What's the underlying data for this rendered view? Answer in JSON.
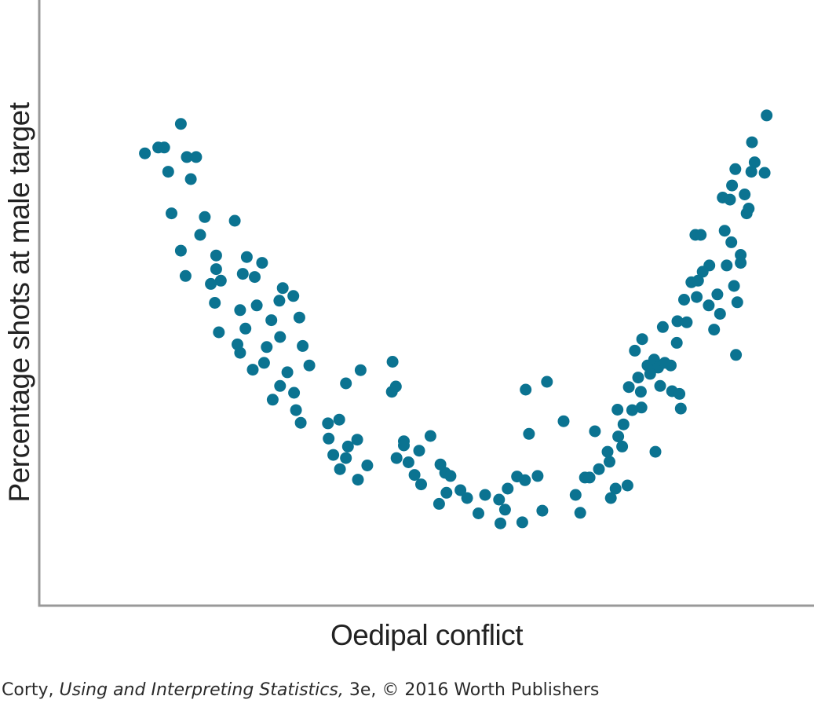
{
  "colors": {
    "point": "#0b7391",
    "axis": "#999999",
    "text": "#222222"
  },
  "chart_data": {
    "type": "scatter",
    "title": "",
    "xlabel": "Oedipal conflict",
    "ylabel": "Percentage shots at male target",
    "xlim": [
      0,
      100
    ],
    "ylim": [
      0,
      100
    ],
    "grid": false,
    "legend": "none",
    "series": [
      {
        "points": [
          [
            8.8,
            84.3
          ],
          [
            10.8,
            85.4
          ],
          [
            11.7,
            85.4
          ],
          [
            12.3,
            80.8
          ],
          [
            14.2,
            89.9
          ],
          [
            15.1,
            83.6
          ],
          [
            16.5,
            83.6
          ],
          [
            15.7,
            79.4
          ],
          [
            12.8,
            72.9
          ],
          [
            14.2,
            65.8
          ],
          [
            14.9,
            61.0
          ],
          [
            17.8,
            72.2
          ],
          [
            17.1,
            68.8
          ],
          [
            22.3,
            71.5
          ],
          [
            19.5,
            64.9
          ],
          [
            20.2,
            60.1
          ],
          [
            19.3,
            55.9
          ],
          [
            19.9,
            50.3
          ],
          [
            18.7,
            59.5
          ],
          [
            19.5,
            62.3
          ],
          [
            23.5,
            61.4
          ],
          [
            24.1,
            64.6
          ],
          [
            25.3,
            60.8
          ],
          [
            26.4,
            63.5
          ],
          [
            25.6,
            55.4
          ],
          [
            23.1,
            54.5
          ],
          [
            23.9,
            51.0
          ],
          [
            23.1,
            46.4
          ],
          [
            25.0,
            43.2
          ],
          [
            22.7,
            48.0
          ],
          [
            27.1,
            47.5
          ],
          [
            29.0,
            56.3
          ],
          [
            27.8,
            52.6
          ],
          [
            26.7,
            44.5
          ],
          [
            29.5,
            58.7
          ],
          [
            32.0,
            53.1
          ],
          [
            31.1,
            57.2
          ],
          [
            29.1,
            49.4
          ],
          [
            30.2,
            42.7
          ],
          [
            29.1,
            40.1
          ],
          [
            28.0,
            37.5
          ],
          [
            31.2,
            38.8
          ],
          [
            32.5,
            47.7
          ],
          [
            33.5,
            44.0
          ],
          [
            32.2,
            33.1
          ],
          [
            31.5,
            35.5
          ],
          [
            36.3,
            33.0
          ],
          [
            38.0,
            33.7
          ],
          [
            36.4,
            30.1
          ],
          [
            37.1,
            27.0
          ],
          [
            39.3,
            28.6
          ],
          [
            38.1,
            24.3
          ],
          [
            39.0,
            26.4
          ],
          [
            40.7,
            29.9
          ],
          [
            42.2,
            25.0
          ],
          [
            40.8,
            22.3
          ],
          [
            39.0,
            40.6
          ],
          [
            41.2,
            43.1
          ],
          [
            46.0,
            44.7
          ],
          [
            46.5,
            40.0
          ],
          [
            45.9,
            39.0
          ],
          [
            47.7,
            29.6
          ],
          [
            46.6,
            26.4
          ],
          [
            48.4,
            25.6
          ],
          [
            47.7,
            28.8
          ],
          [
            50.0,
            27.8
          ],
          [
            50.3,
            21.4
          ],
          [
            49.3,
            23.2
          ],
          [
            51.7,
            30.6
          ],
          [
            53.9,
            23.6
          ],
          [
            54.1,
            19.8
          ],
          [
            54.7,
            23.0
          ],
          [
            53.0,
            17.7
          ],
          [
            53.2,
            25.2
          ],
          [
            56.2,
            20.3
          ],
          [
            57.2,
            18.8
          ],
          [
            58.9,
            15.9
          ],
          [
            59.9,
            19.4
          ],
          [
            62.2,
            14.0
          ],
          [
            62.9,
            16.6
          ],
          [
            62.0,
            18.5
          ],
          [
            63.3,
            20.6
          ],
          [
            64.7,
            22.9
          ],
          [
            65.5,
            14.2
          ],
          [
            65.9,
            22.2
          ],
          [
            66.0,
            39.4
          ],
          [
            66.5,
            31.0
          ],
          [
            67.8,
            23.0
          ],
          [
            68.5,
            16.4
          ],
          [
            69.2,
            40.9
          ],
          [
            71.7,
            33.4
          ],
          [
            73.5,
            19.4
          ],
          [
            74.2,
            16.0
          ],
          [
            74.9,
            22.7
          ],
          [
            75.6,
            22.7
          ],
          [
            76.4,
            31.5
          ],
          [
            78.3,
            27.6
          ],
          [
            78.8,
            18.8
          ],
          [
            79.5,
            20.6
          ],
          [
            79.8,
            35.6
          ],
          [
            80.5,
            28.6
          ],
          [
            81.3,
            21.2
          ],
          [
            81.5,
            39.9
          ],
          [
            82.4,
            46.8
          ],
          [
            82.9,
            41.7
          ],
          [
            83.4,
            36.0
          ],
          [
            83.5,
            49.0
          ],
          [
            84.3,
            44.0
          ],
          [
            85.3,
            45.1
          ],
          [
            85.9,
            43.6
          ],
          [
            86.2,
            40.1
          ],
          [
            85.5,
            27.6
          ],
          [
            86.6,
            51.3
          ],
          [
            87.8,
            44.0
          ],
          [
            88.0,
            39.1
          ],
          [
            89.1,
            38.6
          ],
          [
            89.3,
            35.8
          ],
          [
            88.8,
            52.4
          ],
          [
            89.8,
            56.5
          ],
          [
            90.9,
            59.8
          ],
          [
            91.9,
            60.1
          ],
          [
            91.5,
            68.8
          ],
          [
            92.3,
            68.8
          ],
          [
            93.6,
            63.0
          ],
          [
            93.5,
            55.4
          ],
          [
            94.3,
            50.8
          ],
          [
            95.2,
            53.8
          ],
          [
            95.9,
            69.6
          ],
          [
            95.6,
            75.9
          ],
          [
            96.9,
            67.4
          ],
          [
            97.3,
            59.1
          ],
          [
            97.8,
            56.0
          ],
          [
            97.6,
            46.0
          ],
          [
            98.3,
            63.5
          ],
          [
            98.9,
            76.5
          ],
          [
            99.2,
            72.9
          ],
          [
            99.9,
            80.8
          ],
          [
            100.0,
            86.4
          ],
          [
            100.4,
            82.6
          ],
          [
            101.9,
            80.6
          ],
          [
            102.2,
            91.5
          ],
          [
            97.5,
            81.3
          ],
          [
            97.0,
            78.2
          ],
          [
            96.7,
            75.5
          ],
          [
            99.5,
            73.8
          ],
          [
            98.3,
            65.0
          ],
          [
            96.2,
            63.0
          ],
          [
            94.8,
            57.5
          ],
          [
            92.6,
            61.8
          ],
          [
            91.7,
            57.0
          ],
          [
            90.2,
            52.2
          ],
          [
            88.7,
            48.3
          ],
          [
            86.9,
            44.5
          ],
          [
            84.7,
            42.4
          ],
          [
            83.3,
            39.0
          ],
          [
            82.0,
            35.5
          ],
          [
            80.7,
            32.8
          ],
          [
            79.9,
            30.5
          ],
          [
            78.6,
            25.7
          ],
          [
            77.0,
            24.3
          ]
        ]
      }
    ]
  },
  "credit": {
    "author": "Corty, ",
    "book": "Using and Interpreting Statistics,",
    "edition": " 3e, © 2016 Worth Publishers"
  }
}
